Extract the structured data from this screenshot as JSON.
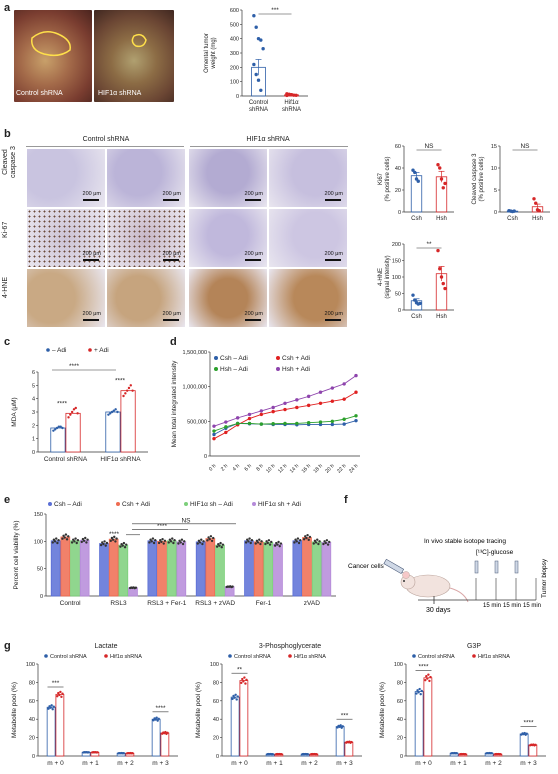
{
  "panels": {
    "a": {
      "label": "a",
      "photo_labels": [
        "Control shRNA",
        "HIF1α shRNA"
      ],
      "chart_data": {
        "type": "scatter",
        "ylabel": "Omental tumor\nweight (mg)",
        "ylim": [
          0,
          600
        ],
        "yticks": [
          0,
          100,
          200,
          300,
          400,
          500,
          600
        ],
        "categories": [
          "Control\nshRNA",
          "Hif1α\nshRNA"
        ],
        "significance": "***",
        "series": [
          {
            "name": "Control shRNA",
            "color": "#2e5fa8",
            "mean": 200,
            "sem": 55,
            "values": [
              560,
              480,
              400,
              390,
              330,
              220,
              150,
              110,
              40
            ]
          },
          {
            "name": "Hif1α shRNA",
            "color": "#d62728",
            "mean": 8,
            "sem": 3,
            "values": [
              15,
              10,
              8,
              6,
              5,
              4,
              12,
              9
            ]
          }
        ]
      }
    },
    "b": {
      "label": "b",
      "column_headers": [
        "Control shRNA",
        "HIF1α shRNA"
      ],
      "row_labels": [
        "Cleaved\ncaspase 3",
        "Ki-67",
        "4-HNE"
      ],
      "scale_bar": "200 μm",
      "charts": [
        {
          "type": "scatter",
          "ylabel": "Ki67\n(% positive cells)",
          "ylim": [
            0,
            60
          ],
          "yticks": [
            0,
            20,
            40,
            60
          ],
          "categories": [
            "Csh",
            "Hsh"
          ],
          "significance": "NS",
          "series": [
            {
              "name": "Csh",
              "color": "#2e5fa8",
              "mean": 33,
              "sem": 3,
              "values": [
                38,
                36,
                30,
                28
              ]
            },
            {
              "name": "Hsh",
              "color": "#d62728",
              "mean": 32,
              "sem": 5,
              "values": [
                43,
                40,
                30,
                22,
                26
              ]
            }
          ]
        },
        {
          "type": "scatter",
          "ylabel": "Cleaved caspase 3\n(% positive cells)",
          "ylim": [
            0,
            15
          ],
          "yticks": [
            0,
            5,
            10,
            15
          ],
          "categories": [
            "Csh",
            "Hsh"
          ],
          "significance": "NS",
          "series": [
            {
              "name": "Csh",
              "color": "#2e5fa8",
              "mean": 0.2,
              "sem": 0.1,
              "values": [
                0.3,
                0.2,
                0.1,
                0.2
              ]
            },
            {
              "name": "Hsh",
              "color": "#d62728",
              "mean": 1.2,
              "sem": 0.6,
              "values": [
                3,
                2,
                0.5,
                0.3
              ]
            }
          ]
        },
        {
          "type": "scatter",
          "ylabel": "4-HNE\n(signal intensity)",
          "ylim": [
            0,
            200
          ],
          "yticks": [
            0,
            50,
            100,
            150,
            200
          ],
          "categories": [
            "Csh",
            "Hsh"
          ],
          "significance": "**",
          "series": [
            {
              "name": "Csh",
              "color": "#2e5fa8",
              "mean": 28,
              "sem": 6,
              "values": [
                45,
                30,
                22,
                18,
                20
              ]
            },
            {
              "name": "Hsh",
              "color": "#d62728",
              "mean": 110,
              "sem": 22,
              "values": [
                180,
                125,
                100,
                80,
                65
              ]
            }
          ]
        }
      ]
    },
    "c": {
      "label": "c",
      "chart_data": {
        "type": "bar",
        "ylabel": "MDA (μM)",
        "ylim": [
          0,
          6
        ],
        "yticks": [
          0,
          1,
          2,
          3,
          4,
          5,
          6
        ],
        "categories": [
          "Control shRNA",
          "HIF1α shRNA"
        ],
        "legend": [
          "– Adi",
          "+ Adi"
        ],
        "significance": [
          "****",
          "****",
          "****"
        ],
        "series": [
          {
            "name": "– Adi",
            "color": "#2e5fa8",
            "values": [
              1.8,
              3.0
            ],
            "points": [
              [
                1.6,
                1.7,
                1.8,
                1.9,
                1.9,
                1.8
              ],
              [
                2.8,
                2.9,
                3.0,
                3.1,
                3.2,
                3.0
              ]
            ]
          },
          {
            "name": "+ Adi",
            "color": "#d62728",
            "values": [
              2.9,
              4.6
            ],
            "points": [
              [
                2.6,
                2.8,
                3.0,
                3.2,
                3.3,
                2.9
              ],
              [
                4.2,
                4.4,
                4.6,
                4.8,
                5.0,
                4.6
              ]
            ]
          }
        ]
      }
    },
    "d": {
      "label": "d",
      "chart_data": {
        "type": "line",
        "ylabel": "Mean total integrated intensity",
        "ylim": [
          0,
          1500000
        ],
        "ytick_labels": [
          "0",
          "500,000",
          "1,000,000",
          "1,500,000"
        ],
        "yticks": [
          0,
          500000,
          1000000,
          1500000
        ],
        "x": [
          "0 h",
          "2 h",
          "4 h",
          "6 h",
          "8 h",
          "10 h",
          "12 h",
          "14 h",
          "16 h",
          "18 h",
          "20 h",
          "22 h",
          "24 h"
        ],
        "series": [
          {
            "name": "Csh – Adi",
            "color": "#2e5fa8",
            "values": [
              310000,
              400000,
              470000,
              465000,
              460000,
              455000,
              455000,
              450000,
              455000,
              455000,
              455000,
              460000,
              510000
            ]
          },
          {
            "name": "Csh + Adi",
            "color": "#e02020",
            "values": [
              250000,
              340000,
              450000,
              540000,
              600000,
              640000,
              670000,
              700000,
              730000,
              760000,
              790000,
              820000,
              920000
            ]
          },
          {
            "name": "Hsh – Adi",
            "color": "#2ca02c",
            "values": [
              360000,
              420000,
              470000,
              470000,
              460000,
              465000,
              470000,
              470000,
              480000,
              490000,
              500000,
              530000,
              580000
            ]
          },
          {
            "name": "Hsh + Adi",
            "color": "#8e44ad",
            "values": [
              430000,
              490000,
              550000,
              600000,
              650000,
              700000,
              760000,
              810000,
              860000,
              920000,
              980000,
              1040000,
              1160000
            ]
          }
        ]
      }
    },
    "e": {
      "label": "e",
      "chart_data": {
        "type": "bar",
        "ylabel": "Percent cell viability (%)",
        "ylim": [
          0,
          150
        ],
        "yticks": [
          0,
          50,
          100,
          150
        ],
        "categories": [
          "Control",
          "RSL3",
          "RSL3 + Fer-1",
          "RSL3 + zVAD",
          "Fer-1",
          "zVAD"
        ],
        "significance": [
          "****",
          "****",
          "NS"
        ],
        "series": [
          {
            "name": "Csh – Adi",
            "color": "#5b6fd6",
            "values": [
              101,
              96,
              101,
              99,
              101,
              101
            ]
          },
          {
            "name": "Csh + Adi",
            "color": "#ef6b50",
            "values": [
              108,
              104,
              100,
              105,
              99,
              107
            ]
          },
          {
            "name": "HIF1α sh – Adi",
            "color": "#7ccf7a",
            "values": [
              101,
              93,
              101,
              93,
              98,
              99
            ]
          },
          {
            "name": "HIF1α sh + Adi",
            "color": "#b58ad9",
            "values": [
              102,
              15,
              99,
              17,
              95,
              98
            ]
          }
        ]
      }
    },
    "f": {
      "label": "f",
      "title": "In vivo stable isotope tracing",
      "cells": "Cancer cells",
      "glucose": "[¹³C]-glucose",
      "days": "30 days",
      "min_labels": [
        "15\nmin",
        "15\nmin",
        "15\nmin"
      ],
      "biopsy": "Tumor biopsy"
    },
    "g": {
      "label": "g",
      "charts": [
        {
          "type": "bar",
          "title": "Lactate",
          "ylabel": "Metabolite pool (%)",
          "ylim": [
            0,
            100
          ],
          "yticks": [
            0,
            20,
            40,
            60,
            80,
            100
          ],
          "categories": [
            "m + 0",
            "m + 1",
            "m + 2",
            "m + 3"
          ],
          "legend": [
            "Control shRNA",
            "Hif1α shRNA"
          ],
          "significance": [
            "***",
            "",
            "",
            "****"
          ],
          "series": [
            {
              "name": "Control shRNA",
              "color": "#2e5fa8",
              "values": [
                53,
                4,
                3,
                40
              ]
            },
            {
              "name": "Hif1α shRNA",
              "color": "#d62728",
              "values": [
                67,
                4,
                3,
                25
              ]
            }
          ]
        },
        {
          "type": "bar",
          "title": "3-Phosphoglycerate",
          "ylabel": "Metabolite pool (%)",
          "ylim": [
            0,
            100
          ],
          "yticks": [
            0,
            20,
            40,
            60,
            80,
            100
          ],
          "categories": [
            "m + 0",
            "m + 1",
            "m + 2",
            "m + 3"
          ],
          "legend": [
            "Control shRNA",
            "Hif1α shRNA"
          ],
          "significance": [
            "**",
            "",
            "",
            "***"
          ],
          "series": [
            {
              "name": "Control shRNA",
              "color": "#2e5fa8",
              "values": [
                64,
                2,
                2,
                32
              ]
            },
            {
              "name": "Hif1α shRNA",
              "color": "#d62728",
              "values": [
                82,
                2,
                2,
                15
              ]
            }
          ]
        },
        {
          "type": "bar",
          "title": "G3P",
          "ylabel": "Metabolite pool (%)",
          "ylim": [
            0,
            100
          ],
          "yticks": [
            0,
            20,
            40,
            60,
            80,
            100
          ],
          "categories": [
            "m + 0",
            "m + 1",
            "m + 2",
            "m + 3"
          ],
          "legend": [
            "Control shRNA",
            "Hif1α shRNA"
          ],
          "significance": [
            "****",
            "",
            "",
            "****"
          ],
          "series": [
            {
              "name": "Control shRNA",
              "color": "#2e5fa8",
              "values": [
                70,
                3,
                3,
                24
              ]
            },
            {
              "name": "Hif1α shRNA",
              "color": "#d62728",
              "values": [
                85,
                2,
                2,
                12
              ]
            }
          ]
        }
      ]
    }
  }
}
